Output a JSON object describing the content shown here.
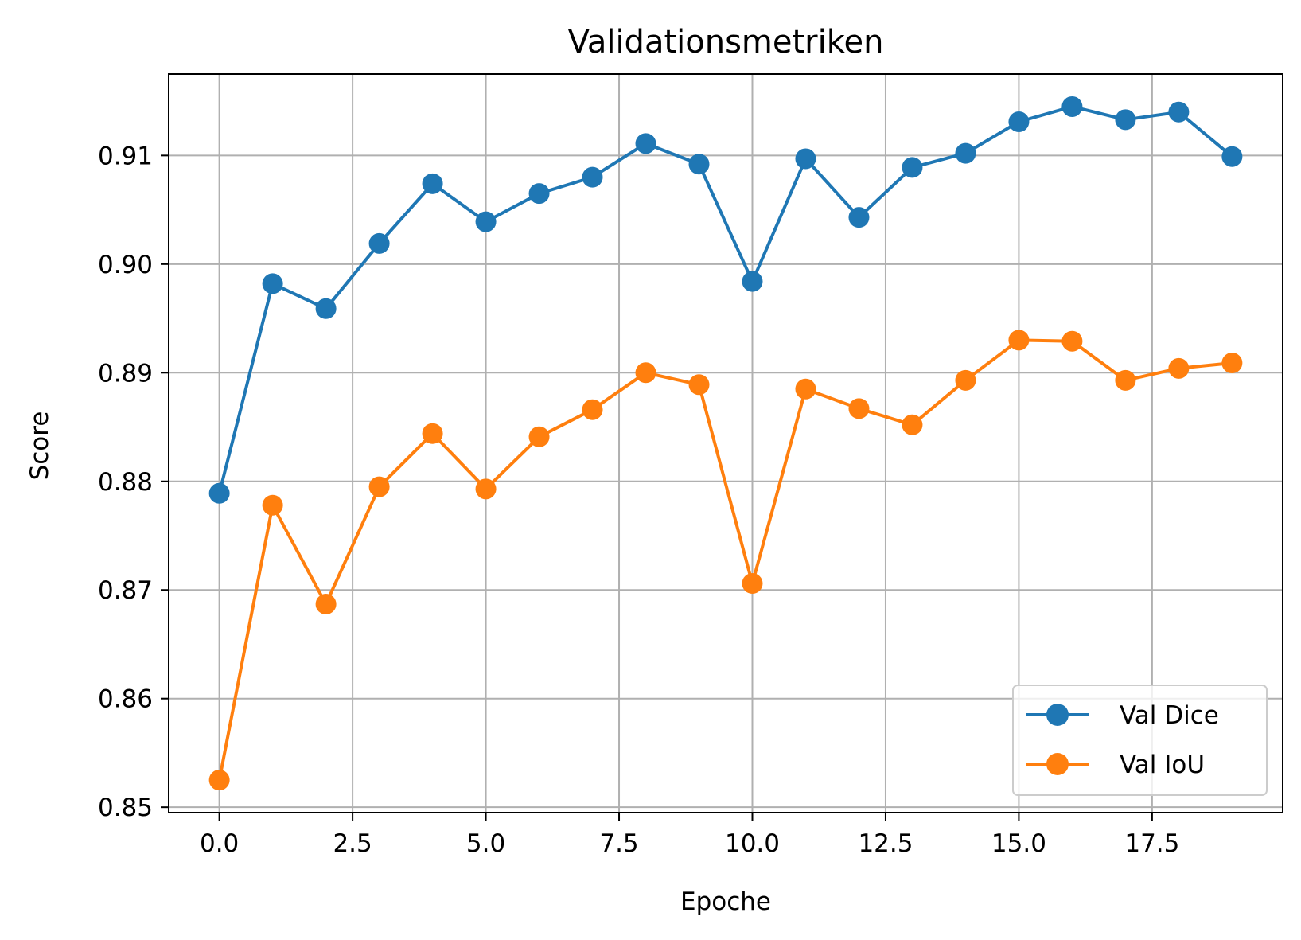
{
  "chart_data": {
    "type": "line",
    "title": "Validationsmetriken",
    "xlabel": "Epoche",
    "ylabel": "Score",
    "xlim": [
      -0.95,
      19.95
    ],
    "ylim": [
      0.8495,
      0.9175
    ],
    "xticks": [
      0.0,
      2.5,
      5.0,
      7.5,
      10.0,
      12.5,
      15.0,
      17.5
    ],
    "xtick_labels": [
      "0.0",
      "2.5",
      "5.0",
      "7.5",
      "10.0",
      "12.5",
      "15.0",
      "17.5"
    ],
    "yticks": [
      0.85,
      0.86,
      0.87,
      0.88,
      0.89,
      0.9,
      0.91
    ],
    "ytick_labels": [
      "0.85",
      "0.86",
      "0.87",
      "0.88",
      "0.89",
      "0.90",
      "0.91"
    ],
    "grid": true,
    "legend_position": "lower-right",
    "x": [
      0,
      1,
      2,
      3,
      4,
      5,
      6,
      7,
      8,
      9,
      10,
      11,
      12,
      13,
      14,
      15,
      16,
      17,
      18,
      19
    ],
    "series": [
      {
        "name": "Val Dice",
        "color": "#1f77b4",
        "values": [
          0.8789,
          0.8982,
          0.8959,
          0.9019,
          0.9074,
          0.9039,
          0.9065,
          0.908,
          0.9111,
          0.9092,
          0.8984,
          0.9097,
          0.9043,
          0.9089,
          0.9102,
          0.9131,
          0.9145,
          0.9133,
          0.914,
          0.9099
        ]
      },
      {
        "name": "Val IoU",
        "color": "#ff7f0e",
        "values": [
          0.8525,
          0.8778,
          0.8687,
          0.8795,
          0.8844,
          0.8793,
          0.8841,
          0.8866,
          0.89,
          0.8889,
          0.8706,
          0.8885,
          0.8867,
          0.8852,
          0.8893,
          0.893,
          0.8929,
          0.8893,
          0.8904,
          0.8909
        ]
      }
    ]
  }
}
